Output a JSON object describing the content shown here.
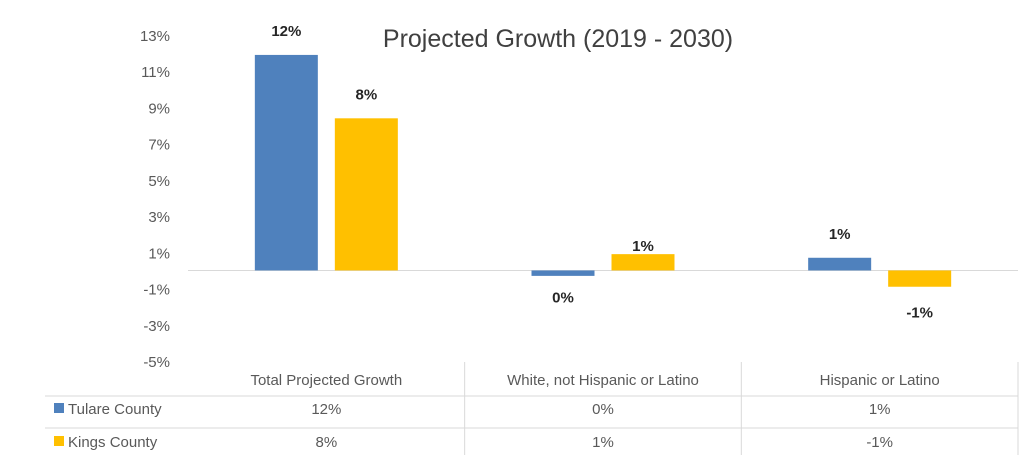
{
  "chart_data": {
    "type": "bar",
    "title": "Projected Growth (2019 - 2030)",
    "categories": [
      "Total Projected Growth",
      "White, not Hispanic or Latino",
      "Hispanic or Latino"
    ],
    "series": [
      {
        "name": "Tulare County",
        "values": [
          11.9,
          -0.3,
          0.7
        ],
        "labels": [
          "12%",
          "0%",
          "1%"
        ],
        "table": [
          "12%",
          "0%",
          "1%"
        ],
        "color": "#4f81bd"
      },
      {
        "name": "Kings County",
        "values": [
          8.4,
          0.9,
          -0.9
        ],
        "labels": [
          "8%",
          "1%",
          "-1%"
        ],
        "table": [
          "8%",
          "1%",
          "-1%"
        ],
        "color": "#ffc000"
      }
    ],
    "ylim": [
      -5,
      13
    ],
    "yticks": [
      13,
      11,
      9,
      7,
      5,
      3,
      1,
      -1,
      -3,
      -5
    ],
    "ytick_labels": [
      "13%",
      "11%",
      "9%",
      "7%",
      "5%",
      "3%",
      "1%",
      "-1%",
      "-3%",
      "-5%"
    ],
    "grid": false,
    "legend": "data-table-left"
  }
}
